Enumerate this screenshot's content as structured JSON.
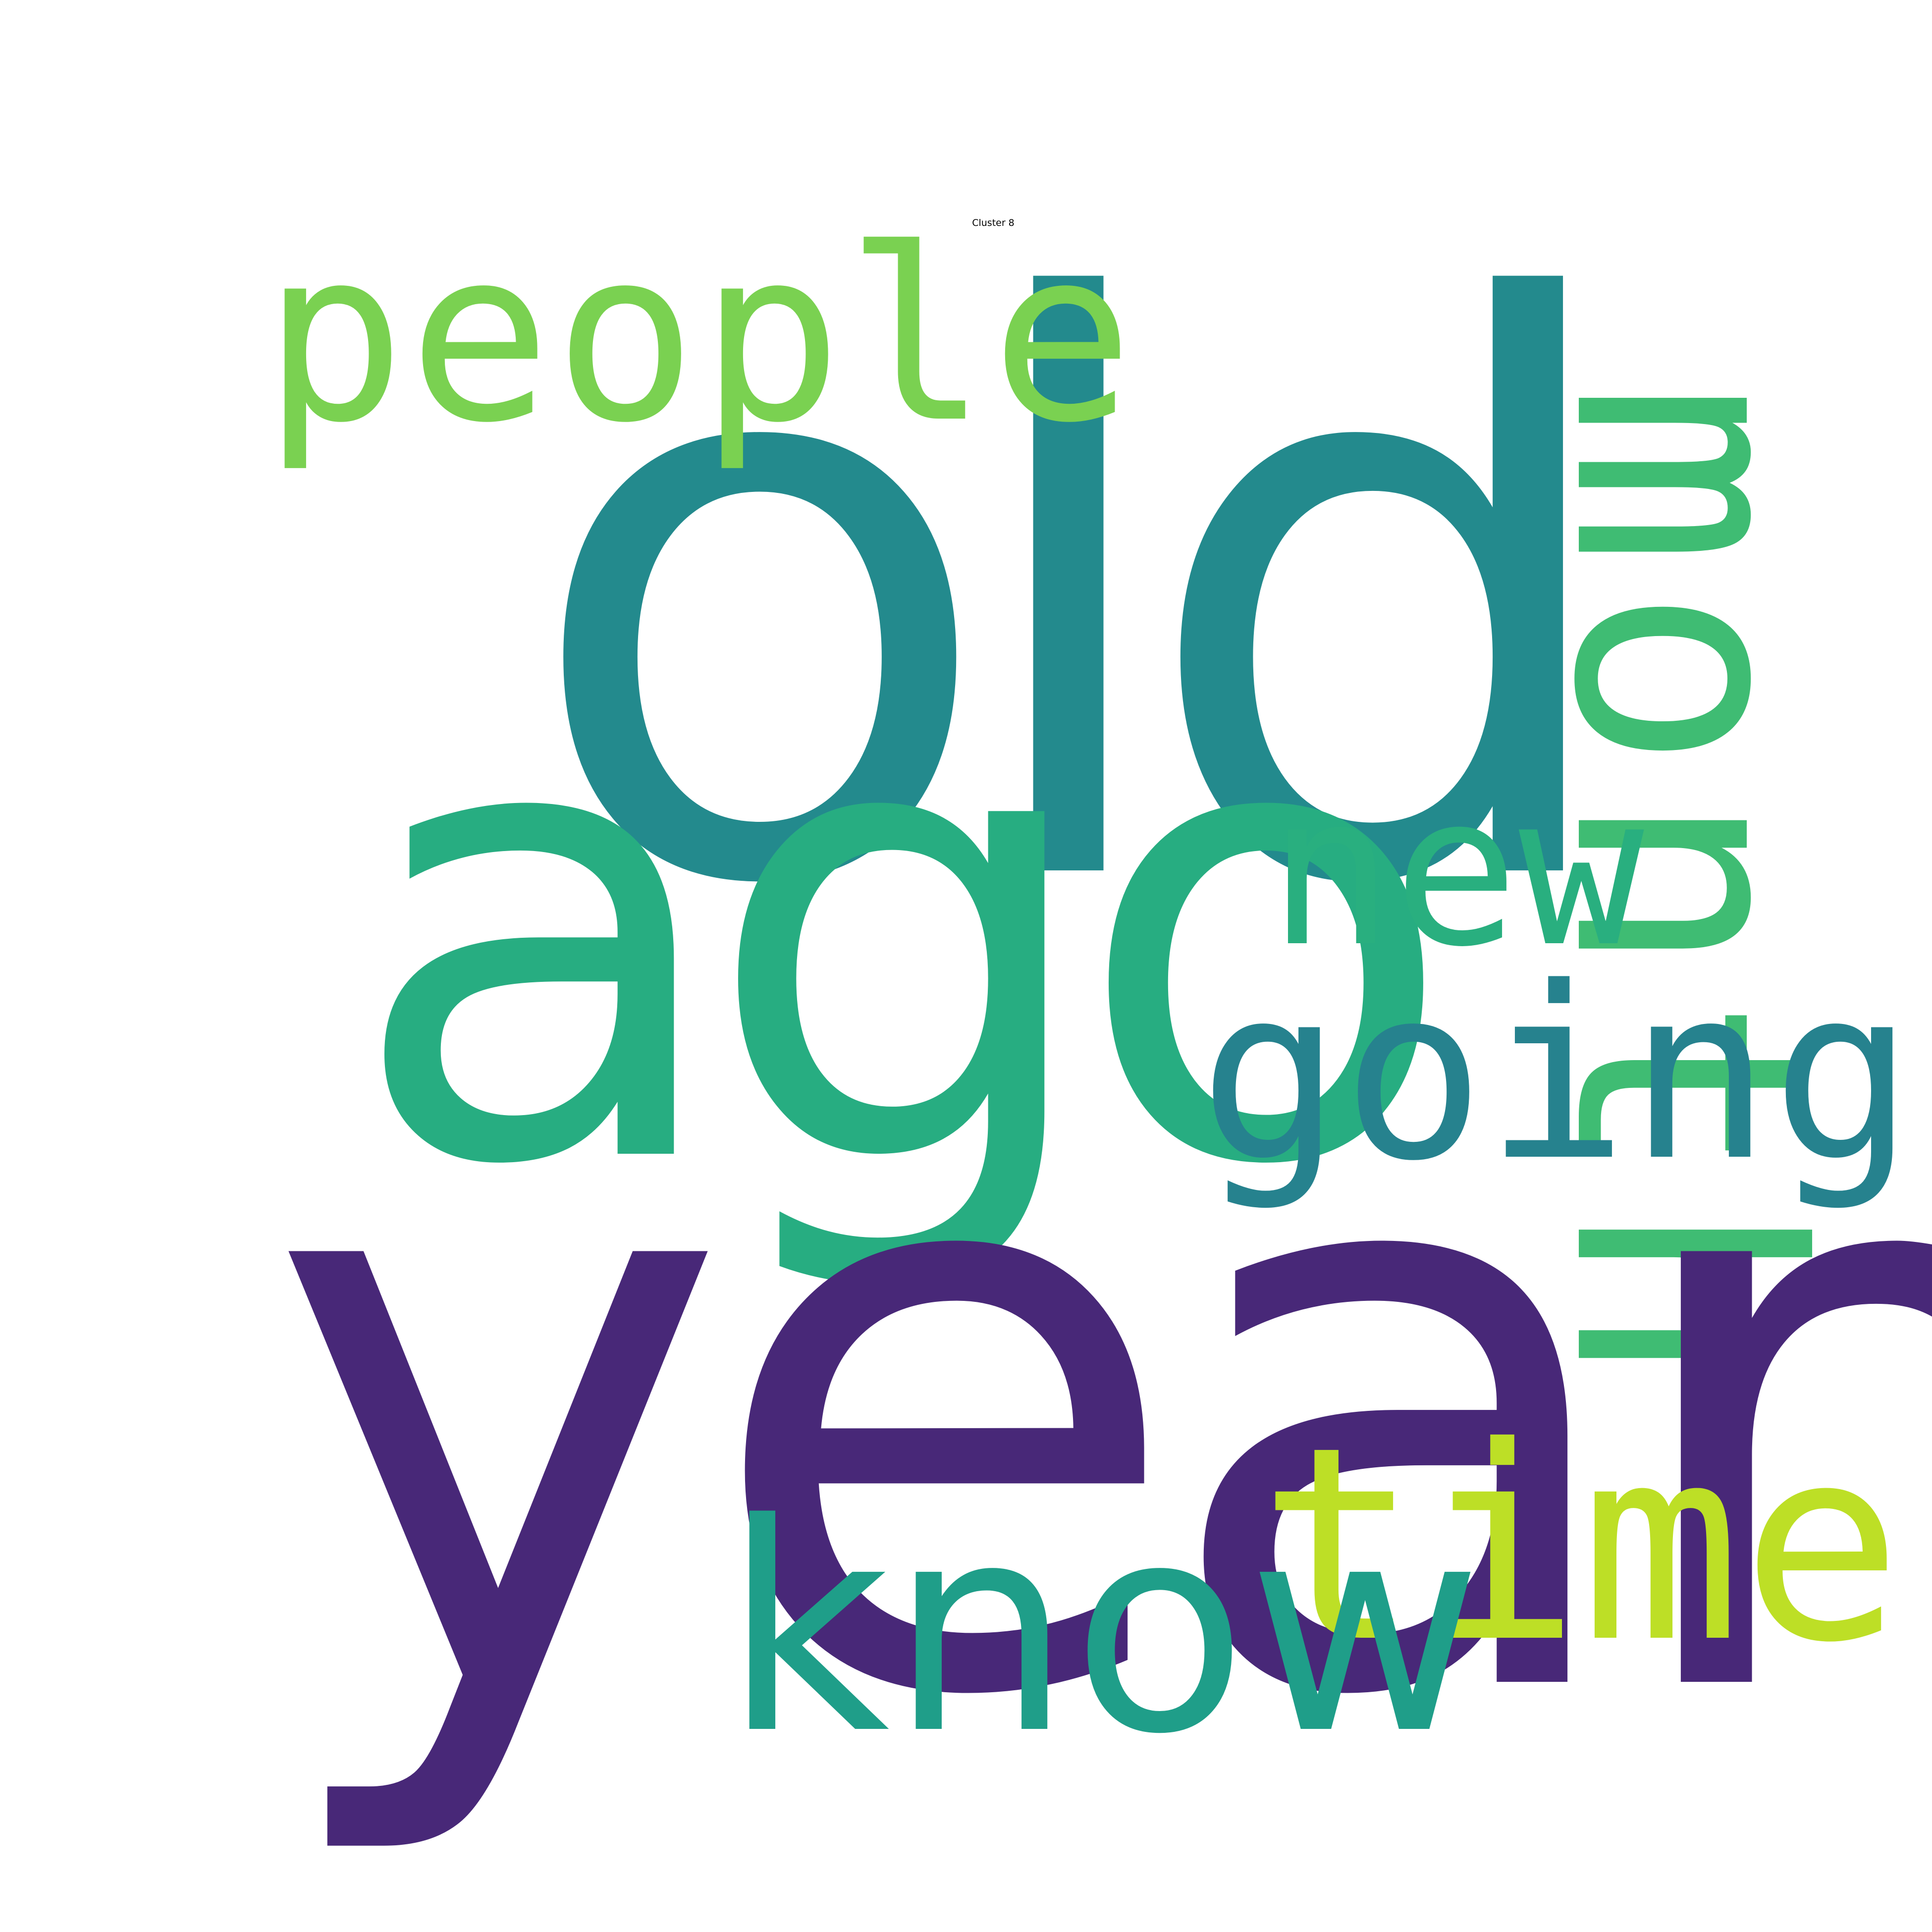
{
  "title": "Cluster 8",
  "words": {
    "old": {
      "text": "old",
      "color": "#238a8d"
    },
    "ago": {
      "text": "ago",
      "color": "#27ad81"
    },
    "year": {
      "text": "year",
      "color": "#482878"
    },
    "people": {
      "text": "people",
      "color": "#7ad151"
    },
    "month": {
      "text": "month",
      "color": "#3fbc73",
      "orientation": "vertical"
    },
    "new": {
      "text": "new",
      "color": "#29af7f"
    },
    "going": {
      "text": "going",
      "color": "#26828e"
    },
    "know": {
      "text": "know",
      "color": "#1f9e89"
    },
    "time": {
      "text": "time",
      "color": "#bddf26"
    }
  }
}
